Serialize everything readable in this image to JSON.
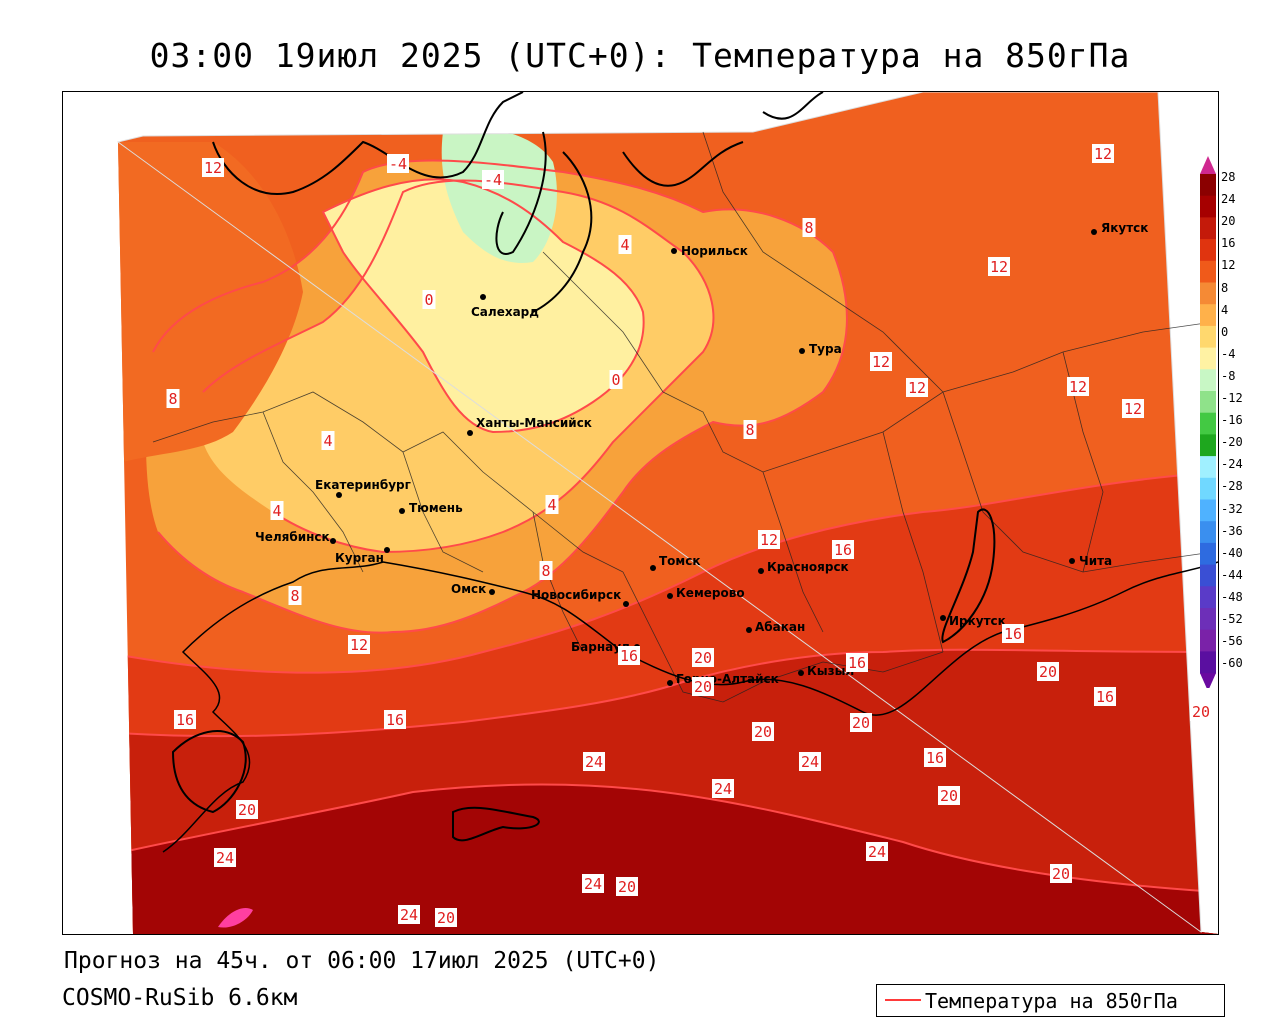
{
  "title": "03:00 19июл 2025 (UTC+0): Температура на 850гПа",
  "footer": {
    "forecast": "Прогноз на 45ч. от 06:00 17июл 2025 (UTC+0)",
    "model": "COSMO-RuSib 6.6км"
  },
  "legend": {
    "label": "Температура на 850гПа",
    "line_color": "#ff3a3a"
  },
  "colorbar": {
    "labels": [
      "28",
      "24",
      "20",
      "16",
      "12",
      "8",
      "4",
      "0",
      "-4",
      "-8",
      "-12",
      "-16",
      "-20",
      "-24",
      "-28",
      "-32",
      "-36",
      "-40",
      "-44",
      "-48",
      "-52",
      "-56",
      "-60"
    ],
    "colors": [
      "#8b0000",
      "#a60000",
      "#c41a0a",
      "#e0340f",
      "#f05a1a",
      "#f58a35",
      "#ffb14a",
      "#ffd86e",
      "#fff2a3",
      "#c8f7c5",
      "#8fe28a",
      "#43c943",
      "#1ea71e",
      "#a0f0ff",
      "#70d8ff",
      "#4fb2ff",
      "#3a8fef",
      "#2e6be0",
      "#3a4fd4",
      "#5a3bc8",
      "#6d2fb8",
      "#7a22a8",
      "#5a0fa0"
    ],
    "top_color": "#d02890",
    "bottom_color": "#6a0aa0"
  },
  "cities": [
    {
      "name": "Норильск"
    },
    {
      "name": "Якутск"
    },
    {
      "name": "Салехард"
    },
    {
      "name": "Тура"
    },
    {
      "name": "Ханты-Мансийск"
    },
    {
      "name": "Екатеринбург"
    },
    {
      "name": "Тюмень"
    },
    {
      "name": "Челябинск"
    },
    {
      "name": "Курган"
    },
    {
      "name": "Омск"
    },
    {
      "name": "Томск"
    },
    {
      "name": "Красноярск"
    },
    {
      "name": "Новосибирск"
    },
    {
      "name": "Кемерово"
    },
    {
      "name": "Абакан"
    },
    {
      "name": "Барнаул"
    },
    {
      "name": "Иркутск"
    },
    {
      "name": "Чита"
    },
    {
      "name": "Горно-Алтайск"
    },
    {
      "name": "Кызыл"
    }
  ],
  "isotherm_labels": [
    "12",
    "-4",
    "-4",
    "4",
    "8",
    "12",
    "0",
    "12",
    "8",
    "12",
    "12",
    "12",
    "12",
    "0",
    "4",
    "8",
    "4",
    "4",
    "8",
    "12",
    "16",
    "8",
    "12",
    "16",
    "16",
    "20",
    "20",
    "16",
    "16",
    "16",
    "20",
    "20",
    "16",
    "20",
    "24",
    "24",
    "24",
    "20",
    "24",
    "16",
    "20",
    "24",
    "24",
    "20",
    "24",
    "20",
    "20",
    "20"
  ]
}
